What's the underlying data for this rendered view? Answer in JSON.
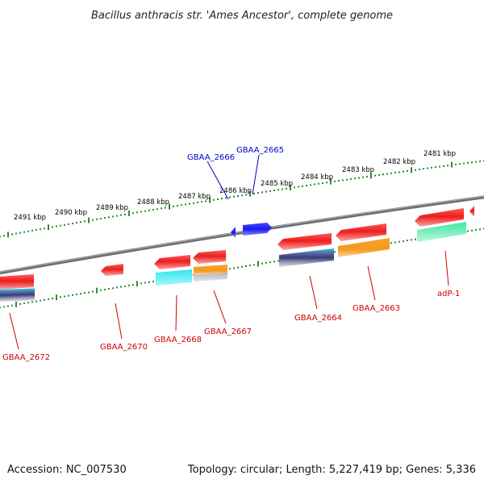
{
  "title": "Bacillus anthracis str. 'Ames Ancestor', complete genome",
  "footer": {
    "accession": "Accession: NC_007530",
    "summary": "Topology: circular; Length: 5,227,419 bp; Genes: 5,336"
  },
  "colors": {
    "backbone": "#7a7a7a",
    "tick": "#2e8b2e",
    "forward_label": "#0000cc",
    "reverse_label": "#cc0000",
    "gene_red": "#ee1c1c",
    "gene_blue": "#1a1aee",
    "cds_cyan": "#1fd6e0",
    "cds_orange": "#f39a1e",
    "cds_green": "#22d98c",
    "cds_grey": "#9a9aa8"
  },
  "kbp_labels": [
    "2491 kbp",
    "2490 kbp",
    "2489 kbp",
    "2488 kbp",
    "2487 kbp",
    "2486 kbp",
    "2485 kbp",
    "2484 kbp",
    "2483 kbp",
    "2482 kbp",
    "2481 kbp"
  ],
  "gene_labels": {
    "forward": [
      "GBAA_2666",
      "GBAA_2665"
    ],
    "reverse": [
      "GBAA_2672",
      "GBAA_2670",
      "GBAA_2668",
      "GBAA_2667",
      "GBAA_2664",
      "GBAA_2663",
      "adP-1"
    ]
  }
}
